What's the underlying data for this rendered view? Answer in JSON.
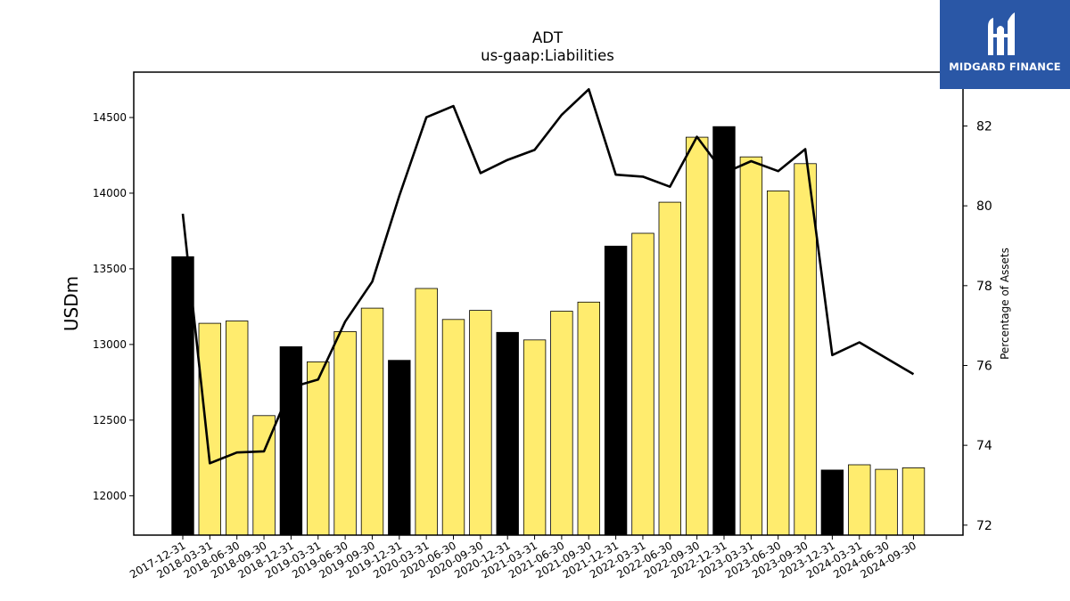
{
  "chart_data": {
    "type": "bar",
    "title": "ADT",
    "subtitle": "us-gaap:Liabilities",
    "ylabel": "USDm",
    "y2label": "Percentage of Assets",
    "ylim": [
      11740,
      14800
    ],
    "y2lim": [
      71.75,
      83.35
    ],
    "yticks": [
      12000,
      12500,
      13000,
      13500,
      14000,
      14500
    ],
    "y2ticks": [
      72,
      74,
      76,
      78,
      80,
      82
    ],
    "categories": [
      "2017-12-31",
      "2018-03-31",
      "2018-06-30",
      "2018-09-30",
      "2018-12-31",
      "2019-03-31",
      "2019-06-30",
      "2019-09-30",
      "2019-12-31",
      "2020-03-31",
      "2020-06-30",
      "2020-09-30",
      "2020-12-31",
      "2021-03-31",
      "2021-06-30",
      "2021-09-30",
      "2021-12-31",
      "2022-03-31",
      "2022-06-30",
      "2022-09-30",
      "2022-12-31",
      "2023-03-31",
      "2023-06-30",
      "2023-09-30",
      "2023-12-31",
      "2024-03-31",
      "2024-06-30",
      "2024-09-30"
    ],
    "series": [
      {
        "chart": "bar",
        "axis": "left",
        "values": [
          13580,
          13140,
          13155,
          12530,
          12985,
          12885,
          13085,
          13240,
          12895,
          13370,
          13165,
          13225,
          13080,
          13030,
          13220,
          13280,
          13650,
          13735,
          13940,
          14370,
          14440,
          14240,
          14015,
          14195,
          12170,
          12205,
          12175,
          12185
        ],
        "annual": [
          true,
          false,
          false,
          false,
          true,
          false,
          false,
          false,
          true,
          false,
          false,
          false,
          true,
          false,
          false,
          false,
          true,
          false,
          false,
          false,
          true,
          false,
          false,
          false,
          true,
          false,
          false,
          false
        ]
      },
      {
        "chart": "line",
        "axis": "right",
        "values": [
          79.8,
          73.55,
          73.82,
          73.85,
          75.45,
          75.65,
          77.1,
          78.1,
          80.25,
          82.22,
          82.5,
          80.82,
          81.15,
          81.4,
          82.28,
          82.92,
          80.78,
          80.73,
          80.48,
          81.73,
          80.82,
          81.12,
          80.87,
          81.42,
          76.26,
          76.58,
          76.18,
          75.78
        ]
      }
    ],
    "colors": {
      "annual_bar": "#000000",
      "quarter_bar": "#ffec6e",
      "line": "#000000"
    }
  },
  "logo": {
    "text": "MIDGARD FINANCE",
    "background": "#2a57a6"
  }
}
